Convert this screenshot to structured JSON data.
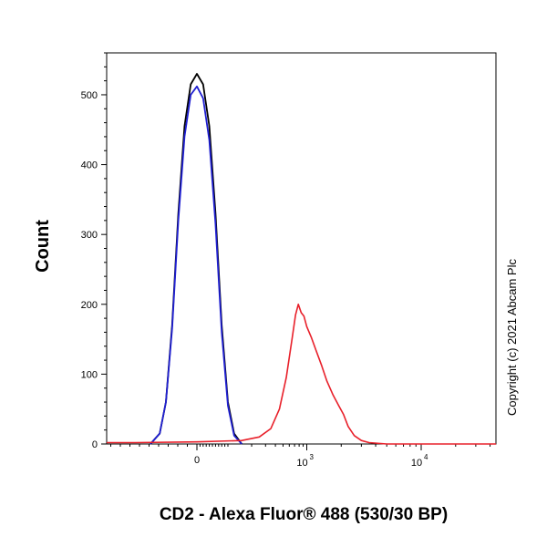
{
  "chart_data": {
    "type": "line",
    "title": "",
    "xlabel": "CD2 - Alexa Fluor® 488 (530/30 BP)",
    "ylabel": "Count",
    "x_scale": "biexponential",
    "xlim": [
      -1000,
      400000
    ],
    "ylim": [
      0,
      560
    ],
    "y_ticks": [
      0,
      100,
      200,
      300,
      400,
      500
    ],
    "x_ticks": [
      {
        "value": 0,
        "label": "0",
        "base": "",
        "exp": ""
      },
      {
        "value": 1000,
        "label": "",
        "base": "10",
        "exp": "3"
      },
      {
        "value": 10000,
        "label": "",
        "base": "10",
        "exp": "4"
      }
    ],
    "grid": false,
    "legend": "none",
    "series": [
      {
        "color": "#000000",
        "points": [
          [
            -150,
            0
          ],
          [
            -120,
            15
          ],
          [
            -100,
            60
          ],
          [
            -80,
            170
          ],
          [
            -60,
            330
          ],
          [
            -40,
            455
          ],
          [
            -20,
            515
          ],
          [
            0,
            530
          ],
          [
            20,
            515
          ],
          [
            40,
            455
          ],
          [
            60,
            330
          ],
          [
            80,
            170
          ],
          [
            100,
            60
          ],
          [
            120,
            15
          ],
          [
            150,
            0
          ]
        ]
      },
      {
        "color": "#1f1fd1",
        "points": [
          [
            -150,
            0
          ],
          [
            -120,
            15
          ],
          [
            -100,
            60
          ],
          [
            -80,
            165
          ],
          [
            -60,
            320
          ],
          [
            -40,
            440
          ],
          [
            -20,
            500
          ],
          [
            0,
            512
          ],
          [
            20,
            495
          ],
          [
            40,
            435
          ],
          [
            60,
            315
          ],
          [
            80,
            160
          ],
          [
            100,
            55
          ],
          [
            120,
            12
          ],
          [
            150,
            0
          ]
        ]
      },
      {
        "color": "#e8202a",
        "points": [
          [
            -1000,
            2
          ],
          [
            -200,
            2
          ],
          [
            0,
            3
          ],
          [
            150,
            5
          ],
          [
            250,
            10
          ],
          [
            350,
            22
          ],
          [
            450,
            50
          ],
          [
            550,
            95
          ],
          [
            650,
            150
          ],
          [
            720,
            185
          ],
          [
            780,
            200
          ],
          [
            850,
            188
          ],
          [
            920,
            183
          ],
          [
            1000,
            168
          ],
          [
            1100,
            152
          ],
          [
            1200,
            135
          ],
          [
            1350,
            112
          ],
          [
            1500,
            90
          ],
          [
            1700,
            70
          ],
          [
            1900,
            55
          ],
          [
            2100,
            42
          ],
          [
            2300,
            25
          ],
          [
            2600,
            12
          ],
          [
            3000,
            5
          ],
          [
            3500,
            2
          ],
          [
            5000,
            0
          ],
          [
            400000,
            0
          ]
        ]
      }
    ]
  },
  "copyright": "Copyright (c) 2021 Abcam Plc"
}
